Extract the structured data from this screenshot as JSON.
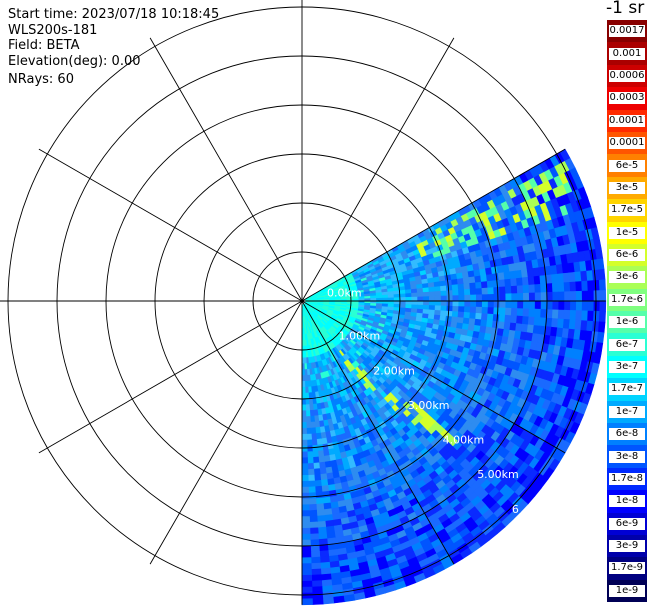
{
  "info": {
    "start_time": "Start time: 2023/07/18 10:18:45",
    "instrument": "WLS200s-181",
    "field": "Field: BETA",
    "elevation": "Elevation(deg): 0.00",
    "nrays": "NRays: 60"
  },
  "chart_data": {
    "type": "heatmap",
    "projection": "polar-ppi",
    "range_unit": "km",
    "range_ring_labels": [
      "0.0km",
      "1.00km",
      "2.00km",
      "3.00km",
      "4.00km",
      "5.00km",
      "6"
    ],
    "max_range_km": 6.2,
    "grid": true,
    "azimuth_spokes_deg": [
      0,
      30,
      60,
      90,
      120,
      150,
      180,
      210,
      240,
      270,
      300,
      330
    ],
    "data_sector_deg": [
      60,
      180
    ],
    "colorbar": {
      "title": "-1 sr",
      "labels": [
        "0.0017",
        "0.001",
        "0.0006",
        "0.0003",
        "0.00017",
        "0.0001",
        "6e-5",
        "3e-5",
        "1.7e-5",
        "1e-5",
        "6e-6",
        "3e-6",
        "1.7e-6",
        "1e-6",
        "6e-7",
        "3e-7",
        "1.7e-7",
        "1e-7",
        "6e-8",
        "3e-8",
        "1.7e-8",
        "1e-8",
        "6e-9",
        "3e-9",
        "1.7e-9",
        "1e-9"
      ],
      "colors": [
        "#880000",
        "#aa0000",
        "#cc0000",
        "#ee0000",
        "#ff2a00",
        "#ff5500",
        "#ff8000",
        "#ffaa00",
        "#ffd400",
        "#ffff00",
        "#d4ff2a",
        "#aaff55",
        "#80ff80",
        "#55ffaa",
        "#2affd4",
        "#00ffff",
        "#00d4ff",
        "#00aaff",
        "#0080ff",
        "#0055ff",
        "#002aff",
        "#0000ff",
        "#0000d4",
        "#0000aa",
        "#000080",
        "#000055"
      ]
    }
  }
}
